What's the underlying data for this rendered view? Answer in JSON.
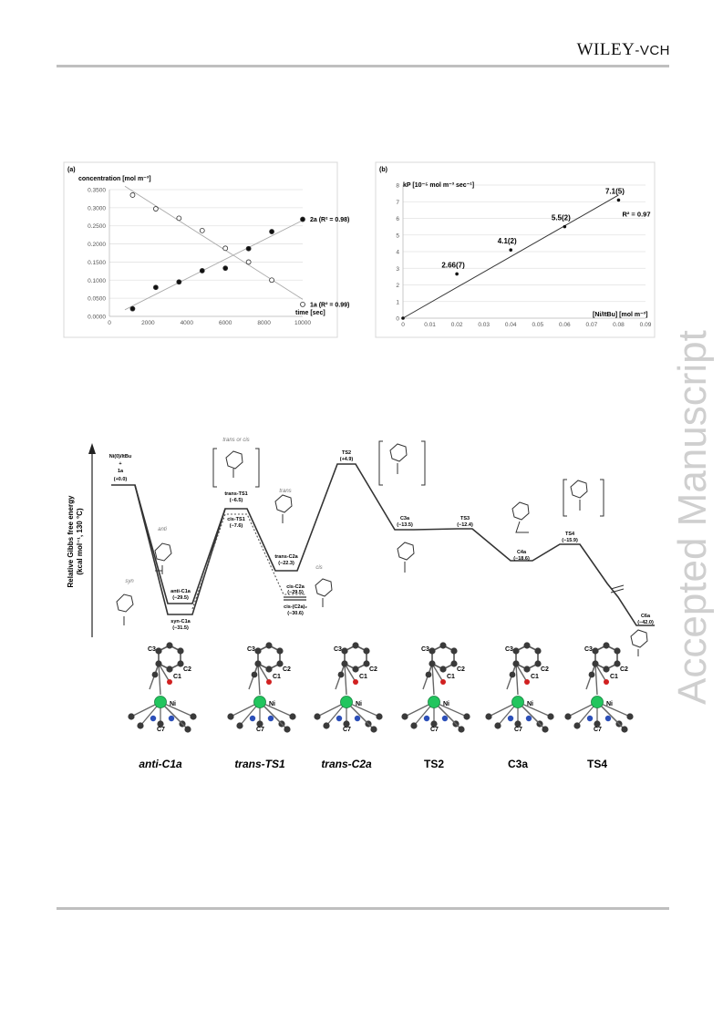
{
  "header": {
    "publisher_main": "WILEY",
    "publisher_sep": "-",
    "publisher_small": "VCH"
  },
  "watermark": {
    "text": "Accepted Manuscript"
  },
  "chart_data": [
    {
      "type": "scatter",
      "panel_label": "(a)",
      "ylabel": "concentration [mol m⁻³]",
      "xlabel": "time [sec]",
      "xlim": [
        0,
        10000
      ],
      "ylim": [
        0,
        0.35
      ],
      "x_ticks": [
        "0",
        "2000",
        "4000",
        "6000",
        "8000",
        "10000"
      ],
      "y_ticks": [
        "0.0000",
        "0.0500",
        "0.1000",
        "0.1500",
        "0.2000",
        "0.2500",
        "0.3000",
        "0.3500"
      ],
      "grid": "horizontal",
      "series": [
        {
          "name": "2a (R² = 0.98)",
          "marker": "filled",
          "x": [
            1200,
            2400,
            3600,
            4800,
            6000,
            7200,
            8400,
            10000
          ],
          "y": [
            0.021,
            0.08,
            0.095,
            0.126,
            0.133,
            0.187,
            0.234,
            0.268
          ]
        },
        {
          "name": "1a (R² = 0.99)",
          "marker": "open",
          "x": [
            1200,
            2400,
            3600,
            4800,
            6000,
            7200,
            8400,
            10000
          ],
          "y": [
            0.335,
            0.297,
            0.271,
            0.237,
            0.188,
            0.15,
            0.1,
            0.033
          ]
        }
      ]
    },
    {
      "type": "scatter",
      "panel_label": "(b)",
      "ylabel": "kP [10⁻⁵ mol m⁻³ sec⁻¹]",
      "xlabel": "[Ni/ItBu] [mol m⁻³]",
      "xlim": [
        0,
        0.09
      ],
      "ylim": [
        0,
        8
      ],
      "x_ticks": [
        "0",
        "0.01",
        "0.02",
        "0.03",
        "0.04",
        "0.05",
        "0.06",
        "0.07",
        "0.08",
        "0.09"
      ],
      "y_ticks": [
        "0",
        "1",
        "2",
        "3",
        "4",
        "5",
        "6",
        "7",
        "8"
      ],
      "grid": "horizontal",
      "annotation": "R² = 0.97",
      "series": [
        {
          "name": "",
          "x": [
            0,
            0.02,
            0.04,
            0.06,
            0.08
          ],
          "y": [
            0,
            2.66,
            4.1,
            5.5,
            7.1
          ],
          "labels": [
            "",
            "2.66(7)",
            "4.1(2)",
            "5.5(2)",
            "7.1(5)"
          ]
        }
      ]
    }
  ],
  "energy_diagram": {
    "ylabel_line1": "Relative Gibbs free energy",
    "ylabel_line2": "(kcal mol⁻¹, 130 °C)",
    "states": [
      {
        "name": "Ni(0)/ItBu",
        "sub": "+",
        "sub2": "1a",
        "value": "(+0.0)"
      },
      {
        "name": "anti-C1a",
        "value": "(−29.5)"
      },
      {
        "name": "syn-C1a",
        "value": "(−31.5)"
      },
      {
        "name": "trans-TS1",
        "value": "(−6.5)"
      },
      {
        "name": "cis-TS1",
        "value": "(−7.6)"
      },
      {
        "name": "trans-C2a",
        "value": "(−22.3)"
      },
      {
        "name": "cis-C2a",
        "value": "(−29.5)"
      },
      {
        "name": "cis-(C2a)₂",
        "value": "(−30.6)"
      },
      {
        "name": "TS2",
        "value": "(+4.9)"
      },
      {
        "name": "C3a",
        "value": "(−13.5)"
      },
      {
        "name": "TS3",
        "value": "(−12.4)"
      },
      {
        "name": "C4a",
        "value": "(−18.6)"
      },
      {
        "name": "TS4",
        "value": "(−15.9)"
      },
      {
        "name": "C6a",
        "value": "(−42.0)"
      }
    ],
    "tags": {
      "anti": "anti",
      "syn": "syn",
      "trans": "trans",
      "cis": "cis",
      "trans_or_cis": "trans or cis"
    },
    "structure_labels": [
      "anti-C1a",
      "trans-TS1",
      "trans-C2a",
      "TS2",
      "C3a",
      "TS4"
    ]
  }
}
